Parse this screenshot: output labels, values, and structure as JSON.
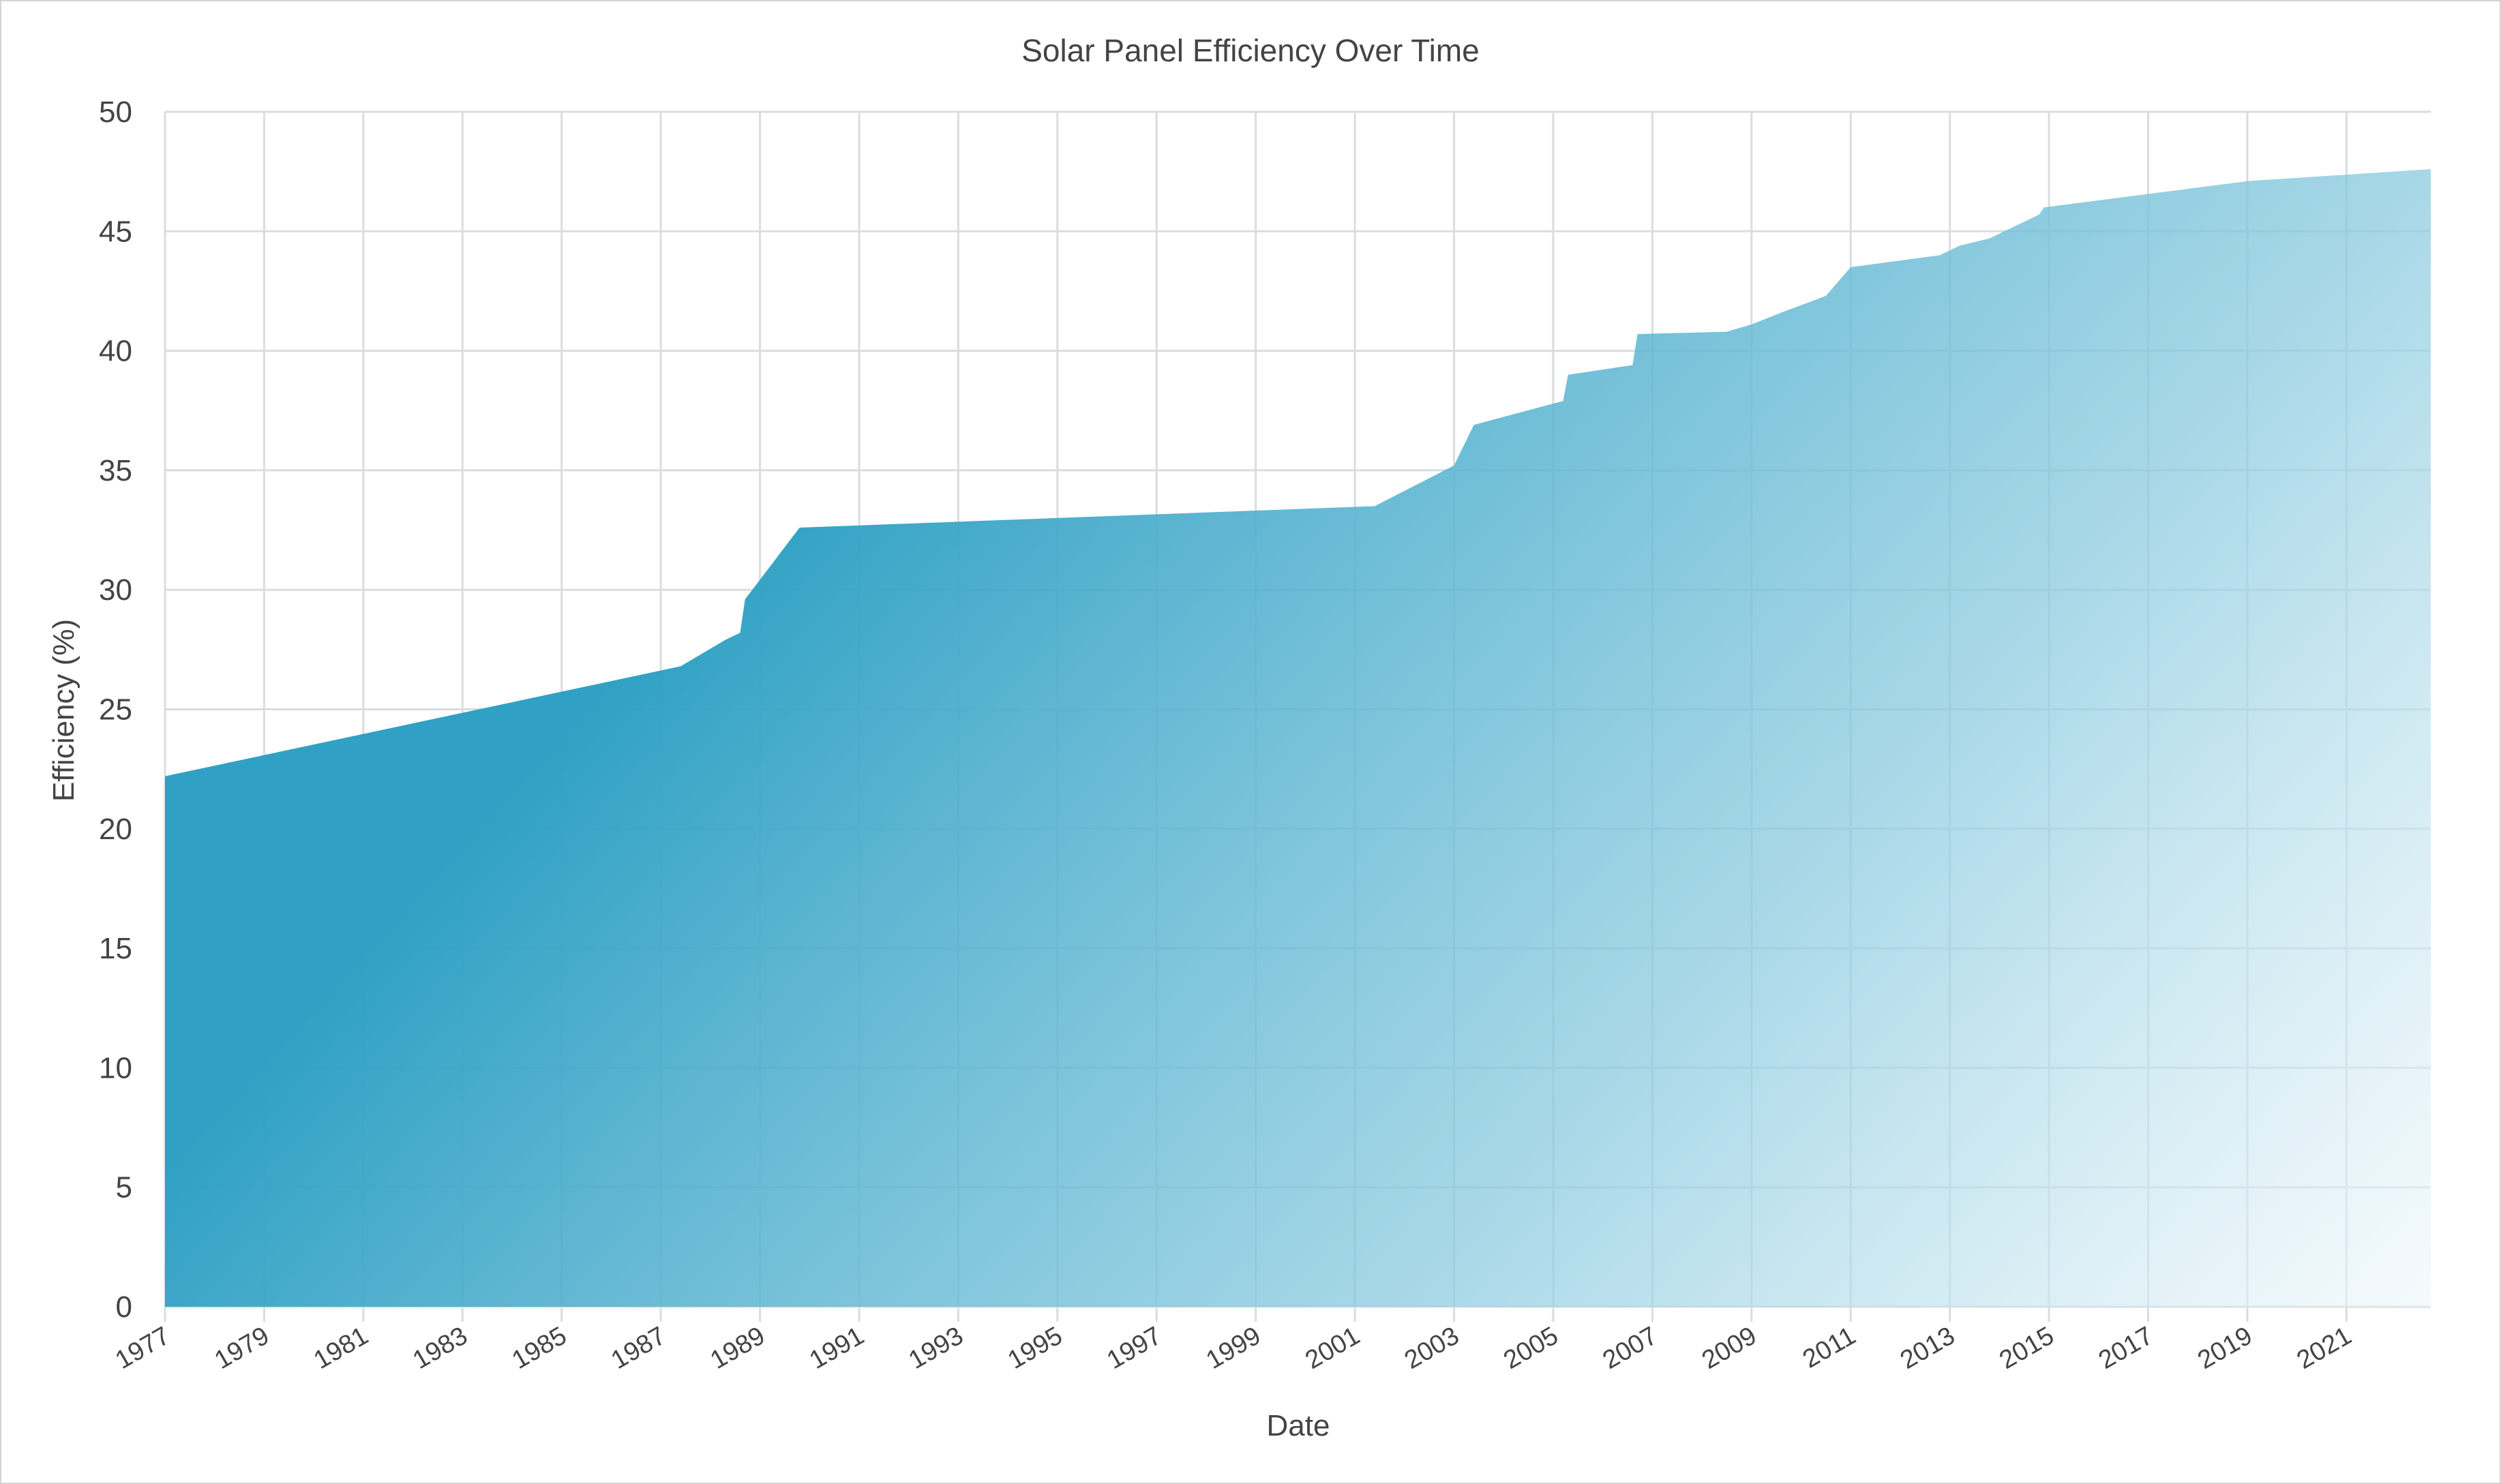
{
  "chart_data": {
    "type": "area",
    "title": "Solar Panel Efficiency Over Time",
    "xlabel": "Date",
    "ylabel": "Efficiency (%)",
    "xlim": [
      1977.0,
      2022.7
    ],
    "ylim": [
      0,
      50
    ],
    "y_ticks": [
      "0",
      "5",
      "10",
      "15",
      "20",
      "25",
      "30",
      "35",
      "40",
      "45",
      "50"
    ],
    "x_ticks": [
      "1977",
      "1979",
      "1981",
      "1983",
      "1985",
      "1987",
      "1989",
      "1991",
      "1993",
      "1995",
      "1997",
      "1999",
      "2001",
      "2003",
      "2005",
      "2007",
      "2009",
      "2011",
      "2013",
      "2015",
      "2017",
      "2019",
      "2021"
    ],
    "grid": true,
    "fill_color_top": "#2c9fc3",
    "fill_color_bottom": "#f7fbfd",
    "series": [
      {
        "x": [
          1977.0,
          1987.4,
          1988.3,
          1988.6,
          1988.7,
          1989.8,
          2001.4,
          2003.0,
          2003.4,
          2005.2,
          2005.3,
          2006.6,
          2006.7,
          2008.5,
          2009.0,
          2009.6,
          2010.5,
          2011.0,
          2012.8,
          2013.2,
          2013.8,
          2014.8,
          2014.9,
          2019.0,
          2022.7
        ],
        "y": [
          22.2,
          26.8,
          27.9,
          28.2,
          29.6,
          32.6,
          33.5,
          35.2,
          36.9,
          37.9,
          39.0,
          39.4,
          40.7,
          40.8,
          41.1,
          41.6,
          42.3,
          43.5,
          44.0,
          44.4,
          44.7,
          45.7,
          46.0,
          47.1,
          47.6
        ]
      }
    ]
  }
}
